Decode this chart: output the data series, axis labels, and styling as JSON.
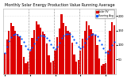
{
  "title": "Monthly Solar Energy Production Value Running Average",
  "bar_color": "#dd0000",
  "avg_color": "#0055ff",
  "background_color": "#ffffff",
  "plot_bg": "#ffffff",
  "grid_color": "#cccccc",
  "separator_color": "#888888",
  "bar_values": [
    72,
    118,
    148,
    175,
    165,
    150,
    138,
    130,
    100,
    60,
    38,
    42,
    78,
    125,
    152,
    182,
    170,
    160,
    145,
    138,
    105,
    65,
    40,
    45,
    82,
    128,
    158,
    205,
    175,
    165,
    148,
    142,
    108,
    68,
    42,
    48,
    80,
    122,
    150,
    182,
    168,
    155,
    140,
    135,
    100,
    55,
    30,
    35,
    38,
    82,
    148,
    178,
    168
  ],
  "avg_values": [
    72,
    95,
    113,
    128,
    136,
    138,
    136,
    131,
    122,
    110,
    97,
    86,
    83,
    91,
    104,
    118,
    127,
    132,
    133,
    131,
    125,
    115,
    103,
    92,
    87,
    95,
    108,
    123,
    133,
    138,
    139,
    137,
    131,
    120,
    107,
    95,
    90,
    95,
    107,
    122,
    131,
    136,
    137,
    135,
    129,
    117,
    103,
    90,
    75,
    72,
    83,
    100,
    112
  ],
  "n_bars": 53,
  "ylim": [
    0,
    225
  ],
  "yticks": [
    50,
    100,
    150,
    200
  ],
  "ytick_labels": [
    "50",
    "100",
    "150",
    "200"
  ],
  "year_separators": [
    12,
    24,
    36,
    48
  ],
  "legend_labels": [
    "Solar PV",
    "Running Avg"
  ],
  "title_fontsize": 3.5,
  "tick_fontsize": 2.8
}
